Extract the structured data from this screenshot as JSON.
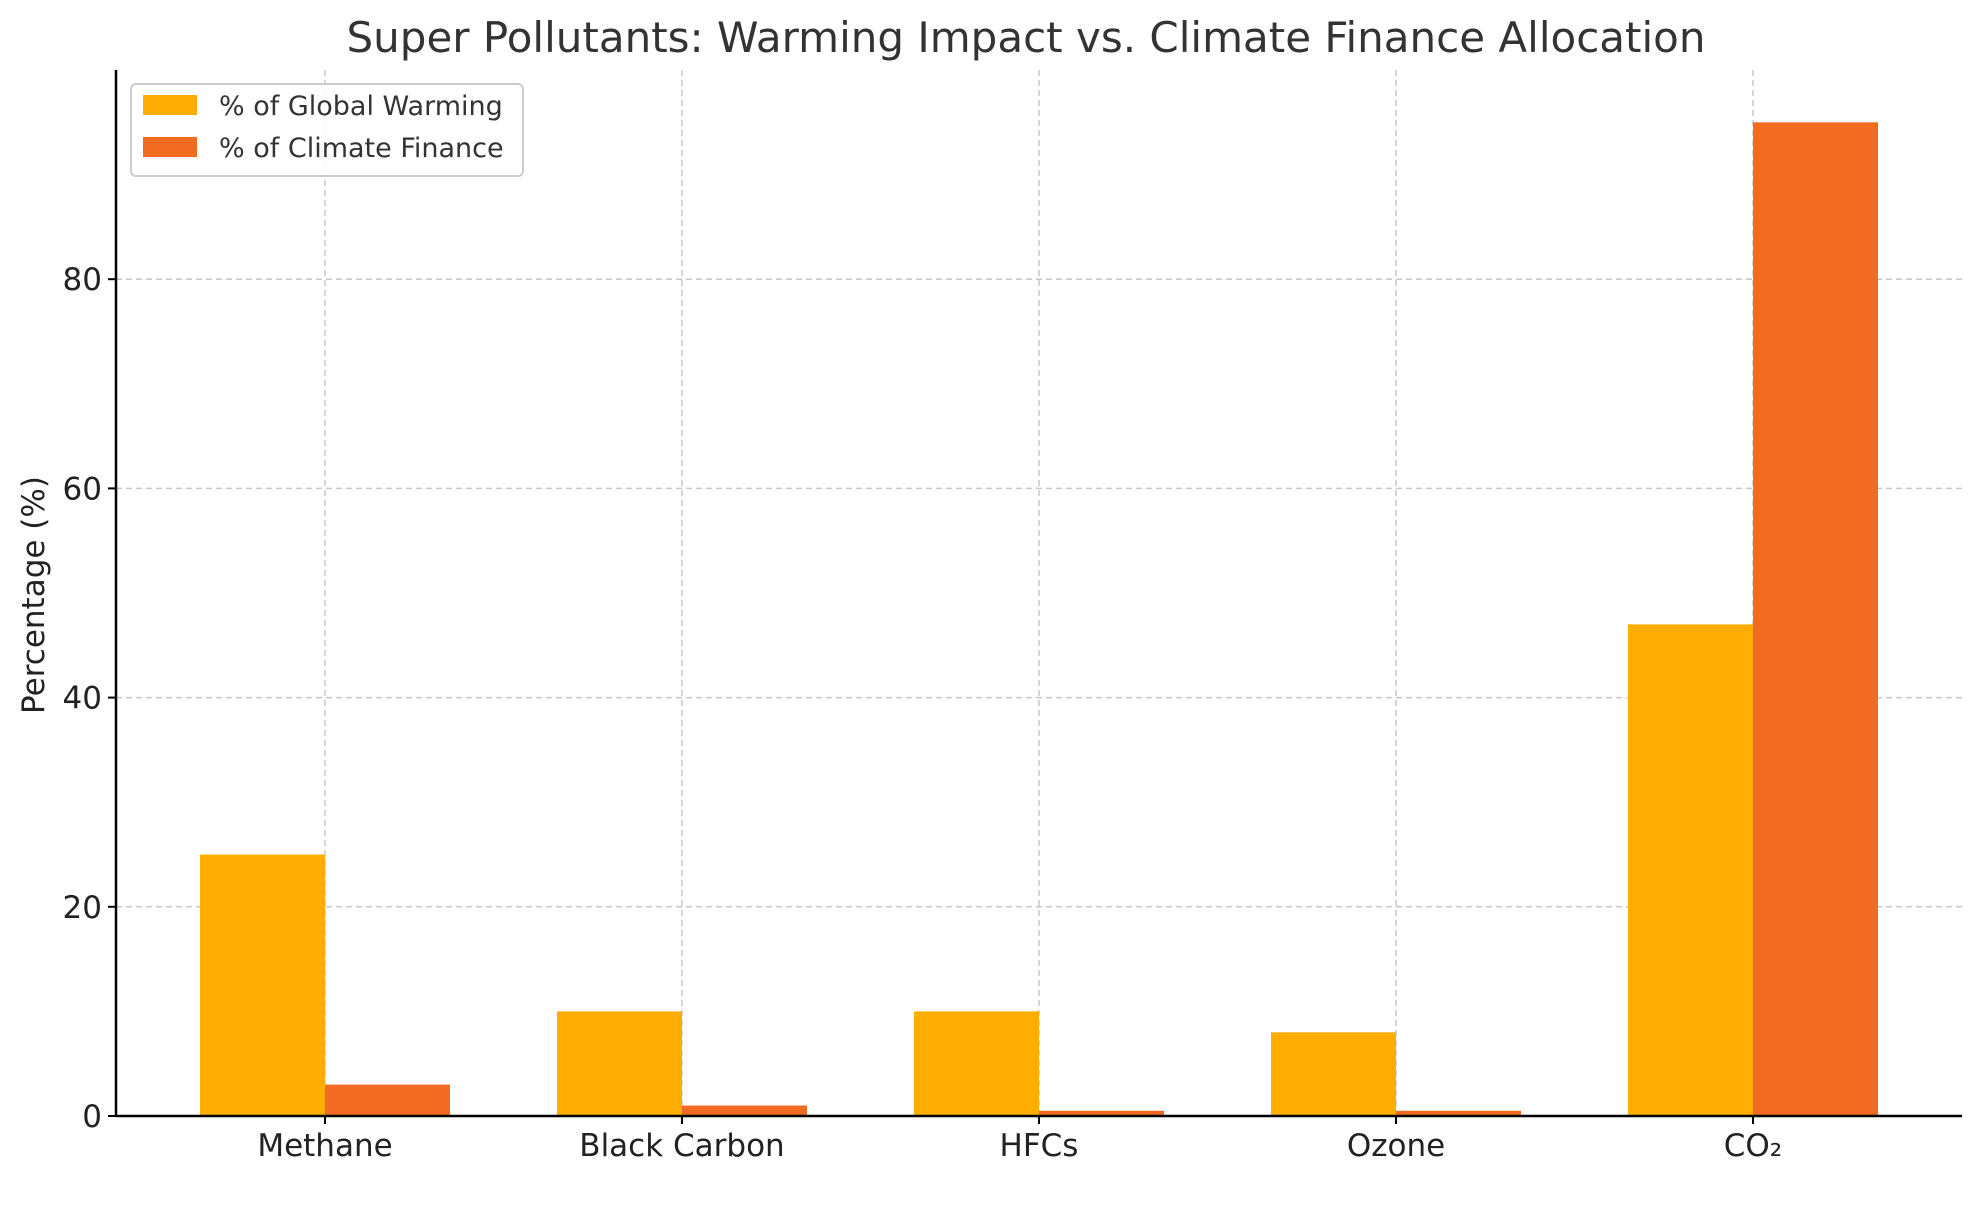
{
  "chart_data": {
    "type": "bar",
    "title": "Super Pollutants: Warming Impact vs. Climate Finance Allocation",
    "xlabel": "",
    "ylabel": "Percentage (%)",
    "categories": [
      "Methane",
      "Black Carbon",
      "HFCs",
      "Ozone",
      "CO₂"
    ],
    "series": [
      {
        "name": "% of Global Warming",
        "color": "#FFAE00",
        "values": [
          25,
          10,
          10,
          8,
          47
        ]
      },
      {
        "name": "% of Climate Finance",
        "color": "#F26B23",
        "values": [
          3,
          1,
          0.5,
          0.5,
          95
        ]
      }
    ],
    "ylim": [
      0,
      100
    ],
    "yticks": [
      0,
      20,
      40,
      60,
      80
    ],
    "grid": true,
    "legend_position": "top-left"
  }
}
